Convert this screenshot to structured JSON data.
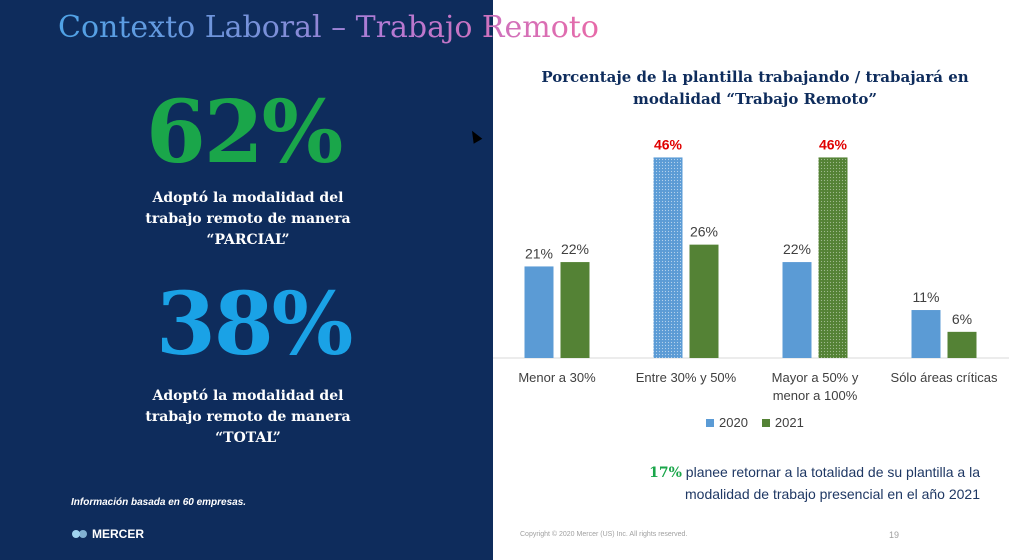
{
  "title": "Contexto Laboral – Trabajo Remoto",
  "stats": [
    {
      "value": "62%",
      "desc_lines": [
        "Adoptó la modalidad del",
        "trabajo remoto de manera",
        "“PARCIAL”"
      ]
    },
    {
      "value": "38%",
      "desc_lines": [
        "Adoptó la modalidad del",
        "trabajo remoto de manera",
        "“TOTAL”"
      ]
    }
  ],
  "footnote": {
    "prefix": "Información basada en ",
    "count": "60",
    "suffix": " empresas."
  },
  "logo": "MERCER",
  "chart_data": {
    "type": "bar",
    "title_lines": [
      "Porcentaje de la plantilla trabajando / trabajará en",
      "modalidad “Trabajo Remoto”"
    ],
    "categories": [
      [
        "Menor a 30%"
      ],
      [
        "Entre 30% y 50%"
      ],
      [
        "Mayor a 50% y",
        "menor a 100%"
      ],
      [
        "Sólo áreas críticas"
      ]
    ],
    "series": [
      {
        "name": "2020",
        "color": "#5b9bd5",
        "values": [
          21,
          46,
          22,
          11
        ],
        "labels": [
          "21%",
          "46%",
          "22%",
          "11%"
        ]
      },
      {
        "name": "2021",
        "color": "#548235",
        "values": [
          22,
          26,
          46,
          6
        ],
        "labels": [
          "22%",
          "26%",
          "46%",
          "6%"
        ]
      }
    ],
    "highlight_color": "#e00000",
    "highlighted": [
      [
        1,
        0
      ],
      [
        2,
        1
      ]
    ],
    "ylim": [
      0,
      50
    ],
    "grid": false,
    "legend_position": "bottom"
  },
  "note": {
    "pct": "17%",
    "line1": " planee retornar a la totalidad de su plantilla a la",
    "line2": "modalidad de trabajo presencial en el año 2021"
  },
  "copyright": "Copyright © 2020 Mercer (US) Inc. All rights reserved.",
  "page_number": "19"
}
